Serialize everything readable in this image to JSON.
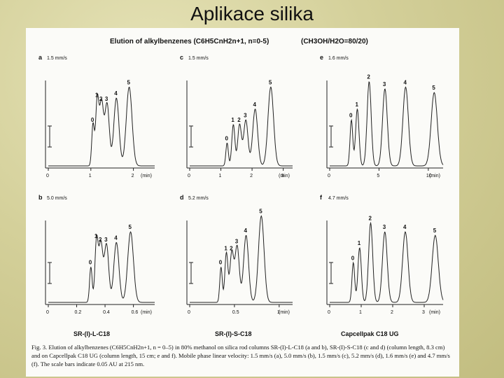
{
  "slide": {
    "title": "Aplikace silika"
  },
  "figure": {
    "header": "Elution of alkylbenzenes (C6H5CnH2n+1, n=0-5)",
    "header_conditions": "(CH3OH/H2O=80/20)",
    "column_labels": [
      "SR-(I)-L-C18",
      "SR-(I)-S-C18",
      "Capcellpak C18 UG"
    ],
    "caption": "Fig. 3. Elution of alkylbenzenes (C6H5CnH2n+1, n = 0–5) in 80% methanol on silica rod columns SR-(I)-L-C18 (a and b), SR-(I)-S-C18 (c and d) (column length, 8.3 cm) and on Capcellpak C18 UG (column length, 15 cm; e and f). Mobile phase linear velocity: 1.5 mm/s (a), 5.0 mm/s (b), 1.5 mm/s (c), 5.2 mm/s (d), 1.6 mm/s (e) and 4.7 mm/s (f). The scale bars indicate 0.05 AU at 215 nm."
  },
  "chart_data": [
    {
      "type": "line",
      "panel": "a",
      "velocity": "1.5 mm/s",
      "xlabel": "(min)",
      "xlim": [
        0,
        2.5
      ],
      "xticks": [
        0,
        1,
        2
      ],
      "peak_labels": [
        "0",
        "1",
        "2",
        "3",
        "4",
        "5"
      ],
      "peak_times": [
        1.05,
        1.15,
        1.25,
        1.38,
        1.6,
        1.9
      ],
      "peak_heights": [
        0.45,
        0.72,
        0.68,
        0.68,
        0.74,
        0.86
      ]
    },
    {
      "type": "line",
      "panel": "c",
      "velocity": "1.5 mm/s",
      "xlabel": "(min)",
      "xlim": [
        0,
        3.3
      ],
      "xticks": [
        0,
        1,
        2,
        3
      ],
      "peak_labels": [
        "0",
        "1",
        "2",
        "3",
        "4",
        "5"
      ],
      "peak_times": [
        1.2,
        1.4,
        1.6,
        1.8,
        2.1,
        2.6
      ],
      "peak_heights": [
        0.25,
        0.45,
        0.45,
        0.5,
        0.62,
        0.86
      ]
    },
    {
      "type": "line",
      "panel": "e",
      "velocity": "1.6 mm/s",
      "xlabel": "(min)",
      "xlim": [
        0,
        11.5
      ],
      "xticks": [
        0,
        5,
        10
      ],
      "peak_labels": [
        "0",
        "1",
        "2",
        "3",
        "4",
        "5"
      ],
      "peak_times": [
        2.2,
        2.8,
        4.0,
        5.6,
        7.7,
        10.6
      ],
      "peak_heights": [
        0.5,
        0.62,
        0.92,
        0.84,
        0.86,
        0.8
      ]
    },
    {
      "type": "line",
      "panel": "b",
      "velocity": "5.0 mm/s",
      "xlabel": "(min)",
      "xlim": [
        0,
        0.75
      ],
      "xticks": [
        0,
        0.2,
        0.4,
        0.6
      ],
      "peak_labels": [
        "0",
        "1",
        "2",
        "3",
        "4",
        "5"
      ],
      "peak_times": [
        0.3,
        0.34,
        0.37,
        0.41,
        0.48,
        0.58
      ],
      "peak_heights": [
        0.4,
        0.7,
        0.66,
        0.66,
        0.68,
        0.8
      ]
    },
    {
      "type": "line",
      "panel": "d",
      "velocity": "5.2 mm/s",
      "xlabel": "(min)",
      "xlim": [
        0,
        1.15
      ],
      "xticks": [
        0,
        0.5,
        1
      ],
      "peak_labels": [
        "0",
        "1",
        "2",
        "3",
        "4",
        "5"
      ],
      "peak_times": [
        0.35,
        0.41,
        0.47,
        0.53,
        0.63,
        0.8
      ],
      "peak_heights": [
        0.4,
        0.56,
        0.56,
        0.64,
        0.76,
        0.98
      ]
    },
    {
      "type": "line",
      "panel": "f",
      "velocity": "4.7 mm/s",
      "xlabel": "(min)",
      "xlim": [
        0,
        3.6
      ],
      "xticks": [
        0,
        1,
        2,
        3
      ],
      "peak_labels": [
        "0",
        "1",
        "2",
        "3",
        "4",
        "5"
      ],
      "peak_times": [
        0.75,
        0.95,
        1.3,
        1.75,
        2.4,
        3.35
      ],
      "peak_heights": [
        0.45,
        0.62,
        0.9,
        0.8,
        0.8,
        0.76
      ]
    }
  ]
}
